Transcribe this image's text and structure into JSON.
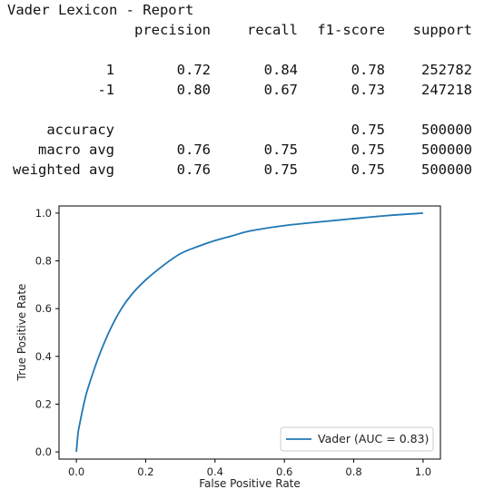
{
  "report": {
    "title": "Vader Lexicon - Report",
    "header": [
      "precision",
      "recall",
      "f1-score",
      "support"
    ],
    "rows": [
      [
        "1",
        "0.72",
        "0.84",
        "0.78",
        "252782"
      ],
      [
        "-1",
        "0.80",
        "0.67",
        "0.73",
        "247218"
      ],
      [
        "accuracy",
        "",
        "",
        "0.75",
        "500000"
      ],
      [
        "macro avg",
        "0.76",
        "0.75",
        "0.75",
        "500000"
      ],
      [
        "weighted avg",
        "0.76",
        "0.75",
        "0.75",
        "500000"
      ]
    ]
  },
  "chart_data": {
    "type": "line",
    "title": "",
    "xlabel": "False Positive Rate",
    "ylabel": "True Positive Rate",
    "xlim": [
      -0.05,
      1.05
    ],
    "ylim": [
      -0.03,
      1.03
    ],
    "xticks": [
      "0.0",
      "0.2",
      "0.4",
      "0.6",
      "0.8",
      "1.0"
    ],
    "yticks": [
      "0.0",
      "0.2",
      "0.4",
      "0.6",
      "0.8",
      "1.0"
    ],
    "grid": false,
    "legend_position": "lower-right",
    "series": [
      {
        "name": "Vader (AUC = 0.83)",
        "color": "#1f77b4",
        "x": [
          0.0,
          0.005,
          0.01,
          0.02,
          0.03,
          0.05,
          0.07,
          0.1,
          0.13,
          0.16,
          0.2,
          0.25,
          0.3,
          0.35,
          0.4,
          0.45,
          0.5,
          0.6,
          0.7,
          0.8,
          0.9,
          1.0
        ],
        "y": [
          0.0,
          0.08,
          0.12,
          0.19,
          0.25,
          0.34,
          0.42,
          0.52,
          0.6,
          0.66,
          0.72,
          0.78,
          0.83,
          0.86,
          0.885,
          0.905,
          0.925,
          0.948,
          0.963,
          0.977,
          0.99,
          1.0
        ]
      }
    ]
  }
}
